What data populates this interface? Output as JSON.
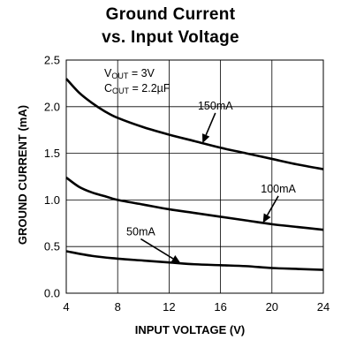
{
  "chart_data": {
    "type": "line",
    "title_line1": "Ground Current",
    "title_line2": "vs. Input Voltage",
    "xlabel": "INPUT VOLTAGE (V)",
    "ylabel": "GROUND CURRENT (mA)",
    "xlim": [
      4,
      24
    ],
    "ylim": [
      0.0,
      2.5
    ],
    "xticks": [
      "4",
      "8",
      "12",
      "16",
      "20",
      "24"
    ],
    "yticks": [
      "0.0",
      "0.5",
      "1.0",
      "1.5",
      "2.0",
      "2.5"
    ],
    "grid": true,
    "conditions": {
      "vout_main": "V",
      "vout_sub": "OUT",
      "vout_value": " = 3V",
      "cout_main": "C",
      "cout_sub": "OUT",
      "cout_value": " = 2.2µF"
    },
    "series": [
      {
        "name": "150mA",
        "x": [
          4,
          5,
          6,
          7,
          8,
          10,
          12,
          14,
          16,
          18,
          20,
          22,
          24
        ],
        "y": [
          2.3,
          2.15,
          2.04,
          1.95,
          1.88,
          1.78,
          1.7,
          1.63,
          1.56,
          1.5,
          1.44,
          1.38,
          1.33
        ]
      },
      {
        "name": "100mA",
        "x": [
          4,
          5,
          6,
          7,
          8,
          10,
          12,
          14,
          16,
          18,
          20,
          22,
          24
        ],
        "y": [
          1.24,
          1.14,
          1.08,
          1.04,
          1.0,
          0.95,
          0.9,
          0.86,
          0.82,
          0.78,
          0.74,
          0.71,
          0.68
        ]
      },
      {
        "name": "50mA",
        "x": [
          4,
          6,
          8,
          10,
          12,
          14,
          16,
          18,
          20,
          22,
          24
        ],
        "y": [
          0.45,
          0.4,
          0.37,
          0.35,
          0.33,
          0.31,
          0.3,
          0.29,
          0.27,
          0.26,
          0.25
        ]
      }
    ],
    "annotations": [
      {
        "text": "150mA",
        "series": 0,
        "label_x": 15.6,
        "label_y": 1.97,
        "arrow_to_x": 14.6
      },
      {
        "text": "100mA",
        "series": 1,
        "label_x": 20.5,
        "label_y": 1.08,
        "arrow_to_x": 19.3
      },
      {
        "text": "50mA",
        "series": 2,
        "label_x": 9.8,
        "label_y": 0.62,
        "arrow_to_x": 12.9
      }
    ]
  }
}
